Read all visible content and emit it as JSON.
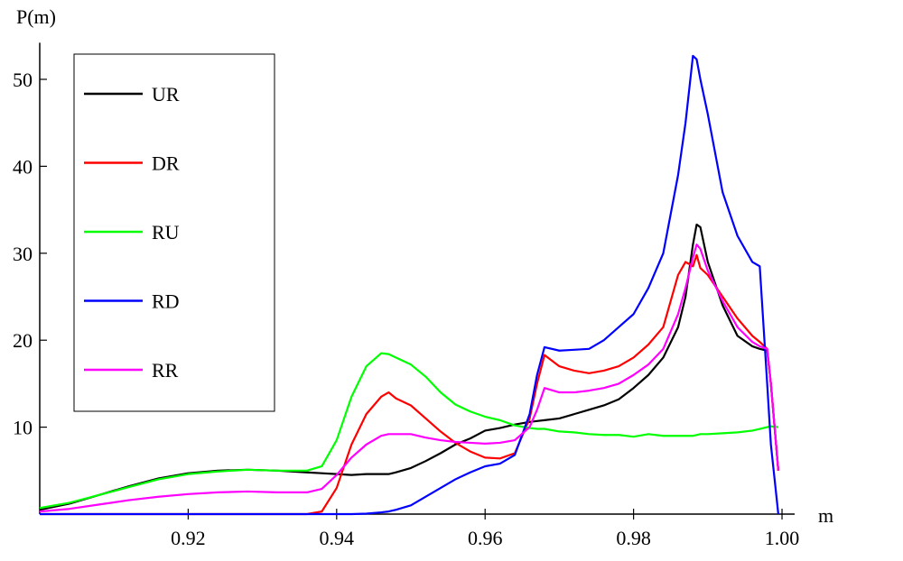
{
  "chart_data": {
    "type": "line",
    "xlabel": "m",
    "ylabel": "P(m)",
    "x": [
      0.9,
      0.904,
      0.908,
      0.912,
      0.916,
      0.92,
      0.924,
      0.928,
      0.932,
      0.936,
      0.938,
      0.94,
      0.942,
      0.944,
      0.946,
      0.947,
      0.948,
      0.95,
      0.952,
      0.954,
      0.956,
      0.958,
      0.96,
      0.962,
      0.964,
      0.966,
      0.967,
      0.968,
      0.97,
      0.972,
      0.974,
      0.976,
      0.978,
      0.98,
      0.982,
      0.984,
      0.986,
      0.987,
      0.988,
      0.9885,
      0.989,
      0.99,
      0.992,
      0.994,
      0.996,
      0.997,
      0.998,
      0.9985,
      0.9995
    ],
    "series": [
      {
        "name": "UR",
        "color": "#000000",
        "values": [
          0.5,
          1.2,
          2.2,
          3.2,
          4.1,
          4.7,
          5.0,
          5.1,
          5.0,
          4.8,
          4.7,
          4.6,
          4.5,
          4.6,
          4.6,
          4.6,
          4.8,
          5.3,
          6.1,
          7.0,
          8.0,
          8.7,
          9.6,
          9.9,
          10.3,
          10.6,
          10.7,
          10.8,
          11.0,
          11.5,
          12.0,
          12.5,
          13.2,
          14.5,
          16.0,
          18.0,
          21.5,
          25.0,
          31.0,
          33.3,
          33.0,
          29.0,
          24.0,
          20.5,
          19.3,
          19.0,
          18.8,
          15.0,
          5.0
        ]
      },
      {
        "name": "DR",
        "color": "#ff0000",
        "values": [
          0,
          0,
          0,
          0,
          0,
          0,
          0,
          0,
          0,
          0,
          0.3,
          3.0,
          8.0,
          11.5,
          13.5,
          14.0,
          13.3,
          12.5,
          11.0,
          9.5,
          8.2,
          7.2,
          6.5,
          6.4,
          7.0,
          11.0,
          15.0,
          18.3,
          17.0,
          16.5,
          16.2,
          16.5,
          17.0,
          18.0,
          19.5,
          21.5,
          27.5,
          29.0,
          28.5,
          29.8,
          28.3,
          27.5,
          25.0,
          22.5,
          20.5,
          19.8,
          19.0,
          15.0,
          5.0
        ]
      },
      {
        "name": "RU",
        "color": "#00ff00",
        "values": [
          0.7,
          1.3,
          2.2,
          3.1,
          4.0,
          4.6,
          4.9,
          5.1,
          5.0,
          5.0,
          5.5,
          8.5,
          13.5,
          17.0,
          18.5,
          18.4,
          18.0,
          17.2,
          15.8,
          14.0,
          12.6,
          11.8,
          11.2,
          10.8,
          10.2,
          9.9,
          9.8,
          9.8,
          9.5,
          9.4,
          9.2,
          9.1,
          9.1,
          8.9,
          9.2,
          9.0,
          9.0,
          9.0,
          9.0,
          9.1,
          9.2,
          9.2,
          9.3,
          9.4,
          9.6,
          9.8,
          10.0,
          10.1,
          10.0
        ]
      },
      {
        "name": "RD",
        "color": "#0000ff",
        "values": [
          0,
          0,
          0,
          0,
          0,
          0,
          0,
          0,
          0,
          0,
          0,
          0,
          0,
          0.05,
          0.2,
          0.3,
          0.5,
          1.0,
          2.0,
          3.0,
          4.0,
          4.8,
          5.5,
          5.8,
          6.8,
          11.5,
          16.0,
          19.2,
          18.8,
          18.9,
          19.0,
          20.0,
          21.5,
          23.0,
          26.0,
          30.0,
          39.0,
          45.0,
          52.7,
          52.3,
          50.0,
          46.0,
          37.0,
          32.0,
          29.0,
          28.5,
          15.0,
          8.0,
          0
        ]
      },
      {
        "name": "RR",
        "color": "#ff00ff",
        "values": [
          0.3,
          0.6,
          1.1,
          1.6,
          2.0,
          2.3,
          2.5,
          2.6,
          2.5,
          2.5,
          2.9,
          4.5,
          6.5,
          8.0,
          9.0,
          9.2,
          9.2,
          9.2,
          8.8,
          8.5,
          8.3,
          8.2,
          8.1,
          8.2,
          8.5,
          10.0,
          12.0,
          14.5,
          14.0,
          14.0,
          14.2,
          14.5,
          15.0,
          16.0,
          17.2,
          19.0,
          23.0,
          26.0,
          29.5,
          31.0,
          30.5,
          28.0,
          24.5,
          21.5,
          19.8,
          19.3,
          19.0,
          15.0,
          5.0
        ]
      }
    ],
    "xlim": [
      0.9,
      1.0017
    ],
    "ylim": [
      0,
      54
    ],
    "xticks": [
      0.92,
      0.94,
      0.96,
      0.98,
      {
        "value": 1.0,
        "label": "1.00"
      }
    ],
    "yticks": [
      10,
      20,
      30,
      40,
      50
    ],
    "grid": false,
    "legend": "upper left"
  }
}
